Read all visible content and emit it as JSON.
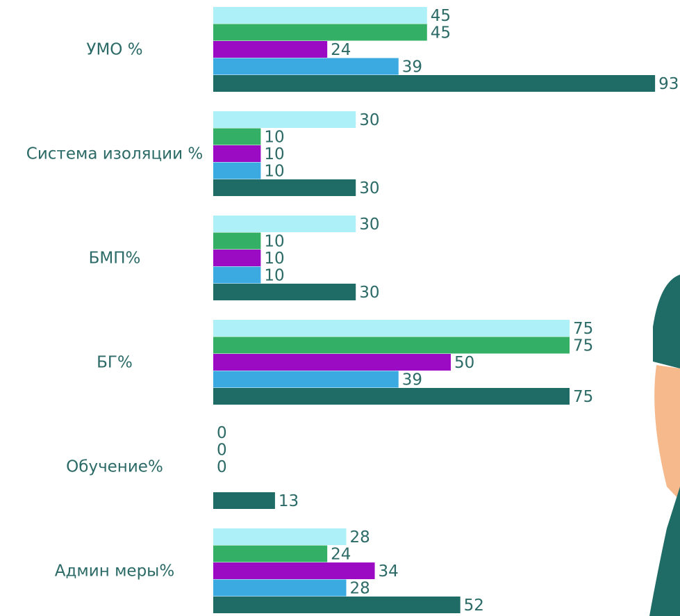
{
  "chart_data": {
    "type": "hbar",
    "categories": [
      "УМО %",
      "Система изоляции %",
      "БМП%",
      "БГ%",
      "Обучение%",
      "Админ меры%"
    ],
    "series": [
      {
        "color": "#aef0f8",
        "values": [
          45,
          30,
          30,
          75,
          0,
          28
        ]
      },
      {
        "color": "#33b066",
        "values": [
          45,
          10,
          10,
          75,
          0,
          24
        ]
      },
      {
        "color": "#9b0bc4",
        "values": [
          24,
          10,
          10,
          50,
          0,
          34
        ]
      },
      {
        "color": "#3aaae0",
        "values": [
          39,
          10,
          10,
          39,
          null,
          28
        ]
      },
      {
        "color": "#1f6b65",
        "values": [
          93,
          30,
          30,
          75,
          13,
          52
        ]
      }
    ],
    "xlim": [
      0,
      100
    ]
  }
}
